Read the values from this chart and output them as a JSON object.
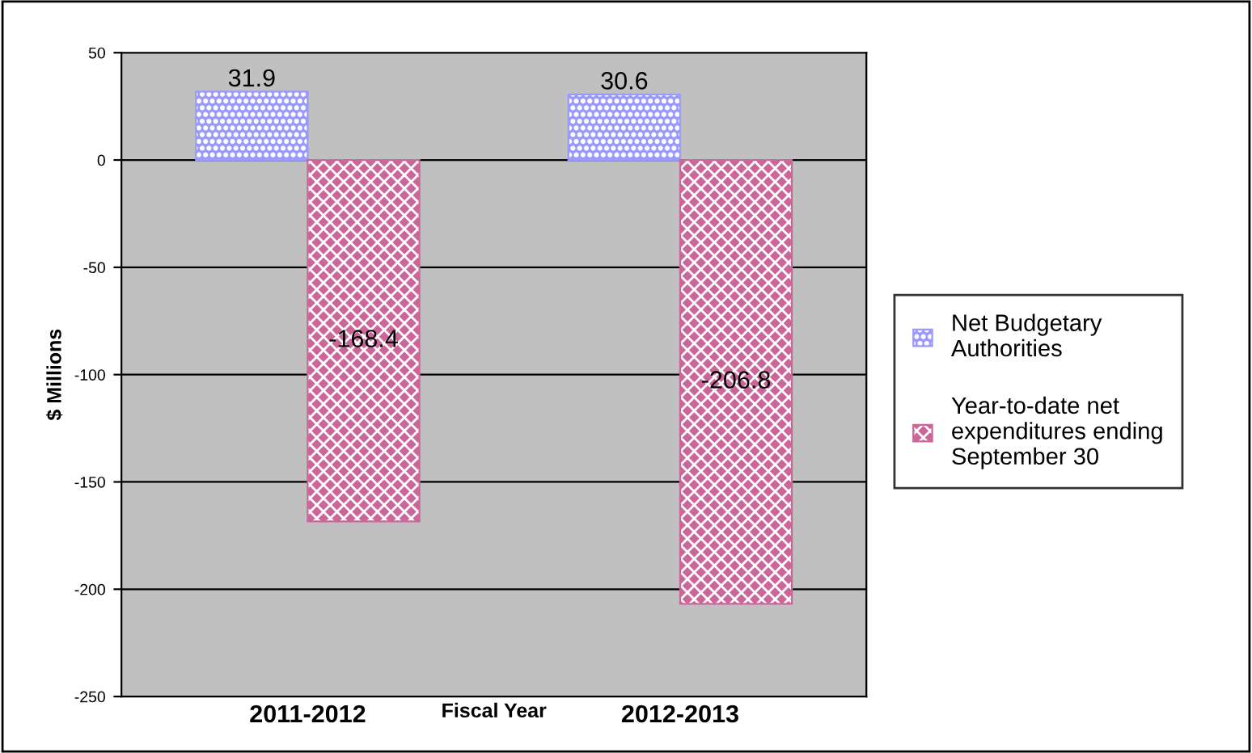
{
  "chart_data": {
    "type": "bar",
    "xlabel": "Fiscal Year",
    "ylabel": "$ Millions",
    "categories": [
      "2011-2012",
      "2012-2013"
    ],
    "series": [
      {
        "name": "Net Budgetary Authorities",
        "color": "#9999ff",
        "values": [
          31.9,
          30.6
        ]
      },
      {
        "name": "Year-to-date net expenditures ending September 30",
        "color": "#cc6699",
        "values": [
          -168.4,
          -206.8
        ]
      }
    ],
    "ylim": [
      -250,
      50
    ],
    "yticks": [
      -250,
      -200,
      -150,
      -100,
      -50,
      0,
      50
    ],
    "grid": "y",
    "legend": "right",
    "data_labels": true
  }
}
